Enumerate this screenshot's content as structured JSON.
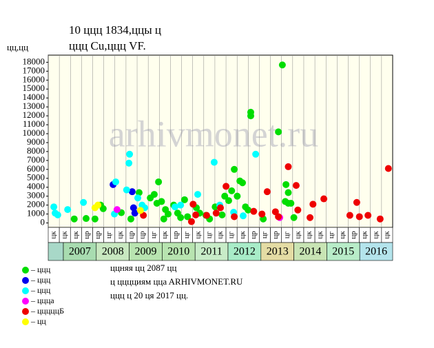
{
  "chart_data": {
    "type": "scatter",
    "title": "10 ццц 1834,ццы ц",
    "subtitle": "ццц Cu,ццц VF.",
    "y_label": "цц,цц",
    "watermark": "arhivmonet.ru",
    "xlim": [
      2006.54,
      2017
    ],
    "ylim": [
      -500,
      18800
    ],
    "yticks": [
      0,
      1000,
      2000,
      3000,
      4000,
      5000,
      6000,
      7000,
      8000,
      9000,
      10000,
      11000,
      12000,
      13000,
      14000,
      15000,
      16000,
      17000,
      18000
    ],
    "years": [
      2007,
      2008,
      2009,
      2010,
      2011,
      2012,
      2013,
      2014,
      2015,
      2016
    ],
    "year_colors": [
      "#a8dcb0",
      "#c8e8c0",
      "#b8e4b0",
      "#b8e4b0",
      "#c8ecc8",
      "#a8ecc8",
      "#e4dca4",
      "#c8e4b4",
      "#b8ecc8",
      "#b4e4ec"
    ],
    "first_cell_color": "#a8d8c8",
    "periods": [
      "цк",
      "цк",
      "цк",
      "цр",
      "цр",
      "цг",
      "цк",
      "цр",
      "цр",
      "цг",
      "цк",
      "цр",
      "цг",
      "цк",
      "цг",
      "цк",
      "цг",
      "цк",
      "цр",
      "цг",
      "цр",
      "цг",
      "цк",
      "цк",
      "цк",
      "цг",
      "цк",
      "цр",
      "цк",
      "цк",
      "цк"
    ],
    "series": [
      {
        "name": "– ццц",
        "color": "#00dd00",
        "x": [
          2007.33,
          2007.69,
          2007.96,
          2008.13,
          2008.21,
          2008.76,
          2009.05,
          2009.3,
          2009.64,
          2009.76,
          2009.84,
          2009.89,
          2009.98,
          2010.05,
          2010.1,
          2010.18,
          2010.35,
          2010.47,
          2010.56,
          2010.68,
          2010.77,
          2011.04,
          2011.14,
          2011.33,
          2011.44,
          2011.61,
          2011.82,
          2011.9,
          2012.02,
          2012.11,
          2012.19,
          2012.28,
          2012.36,
          2012.44,
          2012.53,
          2012.61,
          2012.69,
          2012.69,
          2013.07,
          2013.53,
          2013.65,
          2013.74,
          2013.76,
          2013.83,
          2013.83,
          2013.91,
          2014.0
        ],
        "values": [
          450,
          500,
          450,
          2000,
          1600,
          1150,
          450,
          3400,
          2800,
          3200,
          2200,
          4600,
          2400,
          450,
          1500,
          1000,
          2000,
          1100,
          600,
          2600,
          700,
          1700,
          1100,
          850,
          450,
          1800,
          900,
          3000,
          2500,
          3600,
          6000,
          3000,
          4700,
          4500,
          1800,
          1450,
          12400,
          12000,
          450,
          10200,
          17700,
          2400,
          4300,
          3400,
          2200,
          2200,
          600
        ]
      },
      {
        "name": "– ццц",
        "color": "#0000ee",
        "x": [
          2008.51,
          2009.09,
          2009.13,
          2009.17
        ],
        "values": [
          4300,
          3500,
          1700,
          1100
        ]
      },
      {
        "name": "– ццц",
        "color": "#00ffff",
        "x": [
          2006.71,
          2006.75,
          2006.83,
          2007.13,
          2007.61,
          2008.55,
          2008.59,
          2008.92,
          2008.99,
          2009.01,
          2009.26,
          2009.39,
          2009.47,
          2010.39,
          2010.56,
          2011.08,
          2011.58,
          2011.75,
          2012.17,
          2012.46,
          2012.84
        ],
        "values": [
          1800,
          1100,
          900,
          1500,
          2300,
          1000,
          4600,
          3700,
          6700,
          7700,
          2800,
          2000,
          1700,
          1800,
          2000,
          3200,
          6800,
          2000,
          1200,
          800,
          7700
        ]
      },
      {
        "name": "– ццца",
        "color": "#ff00ff",
        "x": [
          2008.63,
          2013.57
        ],
        "values": [
          1500,
          600
        ]
      },
      {
        "name": "– цццццБ",
        "color": "#ee0000",
        "x": [
          2009.43,
          2010.89,
          2010.94,
          2011.02,
          2011.35,
          2011.64,
          2011.77,
          2011.94,
          2012.19,
          2012.78,
          2013.03,
          2013.19,
          2013.44,
          2013.53,
          2013.83,
          2014.07,
          2014.12,
          2014.49,
          2014.58,
          2014.91,
          2015.7,
          2015.91,
          2015.99,
          2016.25,
          2016.62,
          2016.87
        ],
        "values": [
          850,
          150,
          2100,
          900,
          850,
          1100,
          1700,
          4100,
          700,
          1300,
          1000,
          3500,
          1250,
          700,
          6300,
          4200,
          1450,
          600,
          2100,
          2700,
          850,
          2300,
          700,
          850,
          450,
          6100
        ]
      },
      {
        "name": "– цц",
        "color": "#ffff00",
        "x": [
          2007.96,
          2008.05,
          2009.34
        ],
        "values": [
          1700,
          2000,
          1400
        ]
      }
    ],
    "notes": [
      "ццняя цц 2087 цц",
      "ц цццциям ццa ARHIVMONET.RU",
      "ццц ц 20 ця 2017 цц."
    ]
  }
}
